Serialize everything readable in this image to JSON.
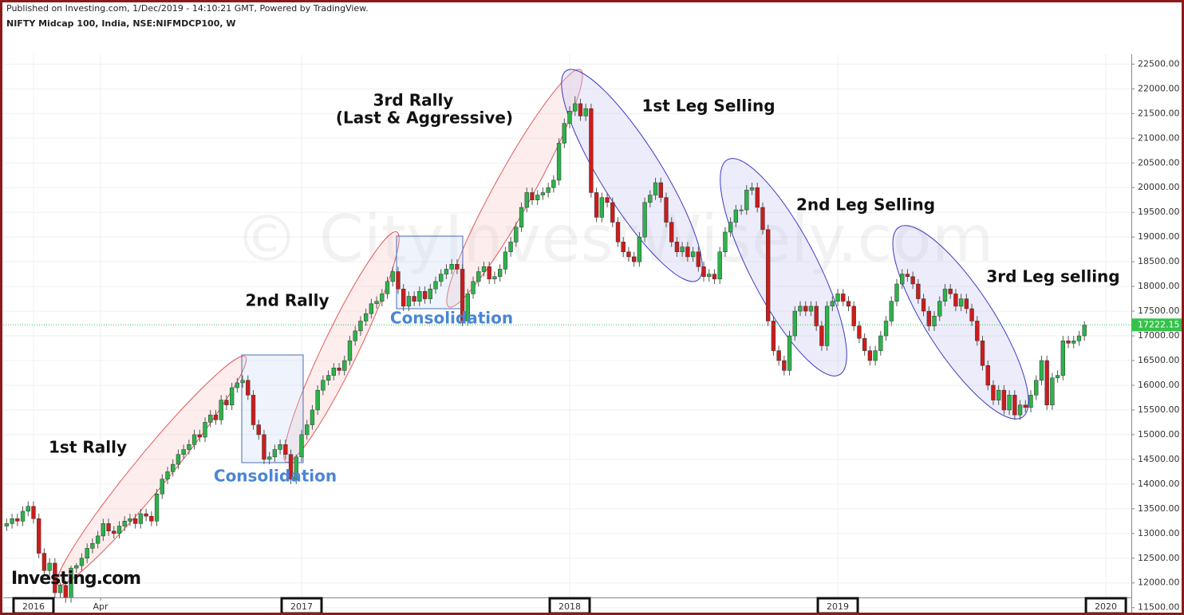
{
  "chart_data": {
    "type": "candlestick",
    "title": "NIFTY Midcap 100, India, NSE:NIFMDCP100, W",
    "subtitle": "Published on Investing.com, 1/Dec/2019 - 14:10:21 GMT, Powered by TradingView.",
    "watermark": "© CityInvestWisely.com",
    "logo": "Investing.com",
    "annotations": [
      "1st Rally",
      "Consolidation",
      "2nd Rally",
      "Consolidation",
      "3rd Rally",
      "(Last & Aggressive)",
      "1st Leg Selling",
      "2nd Leg Selling",
      "3rd Leg selling"
    ],
    "up_color": "#2db24a",
    "down_color": "#cc1c1c",
    "last_line_color": "#35c24a",
    "grid": true,
    "xlim": [
      2015.887,
      2020.095
    ],
    "xticks": [
      {
        "value": 2016,
        "label": "2016"
      },
      {
        "value": 2016.25,
        "label": "Apr"
      },
      {
        "value": 2017,
        "label": "2017"
      },
      {
        "value": 2018,
        "label": "2018"
      },
      {
        "value": 2019,
        "label": "2019"
      },
      {
        "value": 2020,
        "label": "2020"
      }
    ],
    "ylim": [
      11350,
      22700
    ],
    "yticks": [
      {
        "value": 11500,
        "label": "11500.00"
      },
      {
        "value": 12000,
        "label": "12000.00"
      },
      {
        "value": 12500,
        "label": "12500.00"
      },
      {
        "value": 13000,
        "label": "13000.00"
      },
      {
        "value": 13500,
        "label": "13500.00"
      },
      {
        "value": 14000,
        "label": "14000.00"
      },
      {
        "value": 14500,
        "label": "14500.00"
      },
      {
        "value": 15000,
        "label": "15000.00"
      },
      {
        "value": 15500,
        "label": "15500.00"
      },
      {
        "value": 16000,
        "label": "16000.00"
      },
      {
        "value": 16500,
        "label": "16500.00"
      },
      {
        "value": 17000,
        "label": "17000.00"
      },
      {
        "value": 17500,
        "label": "17500.00"
      },
      {
        "value": 18000,
        "label": "18000.00"
      },
      {
        "value": 18500,
        "label": "18500.00"
      },
      {
        "value": 19000,
        "label": "19000.00"
      },
      {
        "value": 19500,
        "label": "19500.00"
      },
      {
        "value": 20000,
        "label": "20000.00"
      },
      {
        "value": 20500,
        "label": "20500.00"
      },
      {
        "value": 21000,
        "label": "21000.00"
      },
      {
        "value": 21500,
        "label": "21500.00"
      },
      {
        "value": 22000,
        "label": "22000.00"
      },
      {
        "value": 22500,
        "label": "22500.00"
      }
    ],
    "x": [
      2015.9,
      2015.92,
      2015.94,
      2015.96,
      2015.98,
      2016.0,
      2016.02,
      2016.04,
      2016.06,
      2016.08,
      2016.1,
      2016.12,
      2016.14,
      2016.16,
      2016.18,
      2016.2,
      2016.22,
      2016.24,
      2016.26,
      2016.28,
      2016.3,
      2016.32,
      2016.34,
      2016.36,
      2016.38,
      2016.4,
      2016.42,
      2016.44,
      2016.46,
      2016.48,
      2016.5,
      2016.52,
      2016.54,
      2016.56,
      2016.58,
      2016.6,
      2016.62,
      2016.64,
      2016.66,
      2016.68,
      2016.7,
      2016.72,
      2016.74,
      2016.76,
      2016.78,
      2016.8,
      2016.82,
      2016.84,
      2016.86,
      2016.88,
      2016.9,
      2016.92,
      2016.94,
      2016.96,
      2016.98,
      2017.0,
      2017.02,
      2017.04,
      2017.06,
      2017.08,
      2017.1,
      2017.12,
      2017.14,
      2017.16,
      2017.18,
      2017.2,
      2017.22,
      2017.24,
      2017.26,
      2017.28,
      2017.3,
      2017.32,
      2017.34,
      2017.36,
      2017.38,
      2017.4,
      2017.42,
      2017.44,
      2017.46,
      2017.48,
      2017.5,
      2017.52,
      2017.54,
      2017.56,
      2017.58,
      2017.6,
      2017.62,
      2017.64,
      2017.66,
      2017.68,
      2017.7,
      2017.72,
      2017.74,
      2017.76,
      2017.78,
      2017.8,
      2017.82,
      2017.84,
      2017.86,
      2017.88,
      2017.9,
      2017.92,
      2017.94,
      2017.96,
      2017.98,
      2018.0,
      2018.02,
      2018.04,
      2018.06,
      2018.08,
      2018.1,
      2018.12,
      2018.14,
      2018.16,
      2018.18,
      2018.2,
      2018.22,
      2018.24,
      2018.26,
      2018.28,
      2018.3,
      2018.32,
      2018.34,
      2018.36,
      2018.38,
      2018.4,
      2018.42,
      2018.44,
      2018.46,
      2018.48,
      2018.5,
      2018.52,
      2018.54,
      2018.56,
      2018.58,
      2018.6,
      2018.62,
      2018.64,
      2018.66,
      2018.68,
      2018.7,
      2018.72,
      2018.74,
      2018.76,
      2018.78,
      2018.8,
      2018.82,
      2018.84,
      2018.86,
      2018.88,
      2018.9,
      2018.92,
      2018.94,
      2018.96,
      2018.98,
      2019.0,
      2019.02,
      2019.04,
      2019.06,
      2019.08,
      2019.1,
      2019.12,
      2019.14,
      2019.16,
      2019.18,
      2019.2,
      2019.22,
      2019.24,
      2019.26,
      2019.28,
      2019.3,
      2019.32,
      2019.34,
      2019.36,
      2019.38,
      2019.4,
      2019.42,
      2019.44,
      2019.46,
      2019.48,
      2019.5,
      2019.52,
      2019.54,
      2019.56,
      2019.58,
      2019.6,
      2019.62,
      2019.64,
      2019.66,
      2019.68,
      2019.7,
      2019.72,
      2019.74,
      2019.76,
      2019.78,
      2019.8,
      2019.82,
      2019.84,
      2019.86,
      2019.88,
      2019.9,
      2019.92
    ],
    "open": [
      13150,
      13200,
      13300,
      13250,
      13450,
      13550,
      13300,
      12600,
      12250,
      12400,
      11800,
      11950,
      11700,
      12300,
      12350,
      12500,
      12700,
      12800,
      12950,
      13200,
      13050,
      13000,
      13150,
      13250,
      13300,
      13200,
      13400,
      13350,
      13250,
      13800,
      14100,
      14250,
      14400,
      14600,
      14700,
      14800,
      15000,
      14950,
      15250,
      15400,
      15300,
      15700,
      15600,
      15950,
      16050,
      16100,
      15800,
      15200,
      15000,
      14500,
      14550,
      14700,
      14800,
      14600,
      14100,
      14550,
      15000,
      15200,
      15500,
      15900,
      16100,
      16200,
      16350,
      16300,
      16500,
      16900,
      17100,
      17300,
      17450,
      17650,
      17700,
      17850,
      18100,
      18300,
      17950,
      17600,
      17800,
      17700,
      17900,
      17750,
      17950,
      18100,
      18250,
      18350,
      18450,
      18350,
      17300,
      17850,
      18100,
      18300,
      18400,
      18150,
      18200,
      18350,
      18700,
      18900,
      19200,
      19600,
      19900,
      19750,
      19850,
      19900,
      20000,
      20150,
      20900,
      21300,
      21550,
      21700,
      21450,
      21600,
      19900,
      19400,
      19800,
      19700,
      19300,
      18900,
      18700,
      18600,
      18500,
      19000,
      19700,
      19850,
      20100,
      19800,
      19300,
      18900,
      18700,
      18800,
      18600,
      18700,
      18400,
      18200,
      18250,
      18150,
      18700,
      19100,
      19300,
      19550,
      19550,
      19950,
      20000,
      19600,
      19150,
      17300,
      16700,
      16500,
      16300,
      17000,
      17500,
      17600,
      17500,
      17600,
      17200,
      16800,
      17600,
      17700,
      17850,
      17700,
      17600,
      17200,
      16950,
      16700,
      16500,
      16700,
      17000,
      17300,
      17700,
      18050,
      18250,
      18200,
      18050,
      17750,
      17500,
      17200,
      17400,
      17700,
      17950,
      17850,
      17600,
      17750,
      17550,
      17300,
      16900,
      16400,
      16000,
      15700,
      15900,
      15500,
      15800,
      15400,
      15600,
      15550,
      15800,
      16100,
      16500,
      15600,
      16150,
      16200,
      16900,
      16850,
      16900,
      17000
    ],
    "high": [
      13300,
      13400,
      13400,
      13550,
      13650,
      13650,
      13400,
      12700,
      12500,
      12500,
      12000,
      12050,
      12350,
      12400,
      12600,
      12800,
      12900,
      13050,
      13300,
      13300,
      13150,
      13250,
      13350,
      13400,
      13400,
      13500,
      13500,
      13450,
      13900,
      14200,
      14350,
      14500,
      14700,
      14800,
      14900,
      15100,
      15100,
      15350,
      15500,
      15500,
      15800,
      15800,
      16050,
      16150,
      16200,
      16200,
      15900,
      15300,
      15100,
      14650,
      14800,
      14900,
      14900,
      14700,
      14600,
      15100,
      15300,
      15600,
      16000,
      16200,
      16300,
      16450,
      16450,
      16600,
      17000,
      17200,
      17400,
      17550,
      17750,
      17800,
      17950,
      18200,
      18400,
      18400,
      18050,
      17900,
      17900,
      18000,
      18000,
      18050,
      18200,
      18350,
      18450,
      18550,
      18550,
      18450,
      17950,
      18200,
      18400,
      18500,
      18500,
      18300,
      18450,
      18800,
      19000,
      19300,
      19700,
      20000,
      20000,
      19950,
      20000,
      20100,
      20250,
      21000,
      21400,
      21650,
      21850,
      21800,
      21700,
      21700,
      20000,
      19900,
      19900,
      19800,
      19400,
      19000,
      18800,
      18700,
      19100,
      19800,
      19950,
      20200,
      20200,
      19900,
      19400,
      19000,
      18900,
      18900,
      18800,
      18800,
      18500,
      18350,
      18350,
      18800,
      19200,
      19400,
      19650,
      19650,
      20050,
      20100,
      20100,
      19700,
      19250,
      17400,
      16800,
      16600,
      17100,
      17600,
      17700,
      17700,
      17700,
      17700,
      17300,
      17700,
      17800,
      17950,
      17950,
      17800,
      17700,
      17300,
      17050,
      16800,
      16800,
      17100,
      17400,
      17800,
      18150,
      18350,
      18350,
      18300,
      18150,
      17850,
      17600,
      17500,
      17800,
      18050,
      18050,
      17950,
      17850,
      17850,
      17650,
      17400,
      17000,
      16500,
      16100,
      16000,
      16000,
      15900,
      15900,
      15700,
      15700,
      15900,
      16200,
      16600,
      16600,
      16250,
      16300,
      17000,
      17000,
      17000,
      17100,
      17300
    ],
    "low": [
      13050,
      13100,
      13150,
      13150,
      13350,
      13200,
      12500,
      12150,
      12150,
      11700,
      11700,
      11600,
      11600,
      12200,
      12250,
      12400,
      12600,
      12700,
      12850,
      12950,
      12900,
      12900,
      13050,
      13150,
      13100,
      13100,
      13250,
      13150,
      13150,
      13700,
      14000,
      14150,
      14300,
      14500,
      14600,
      14700,
      14850,
      14850,
      15150,
      15200,
      15200,
      15500,
      15500,
      15850,
      15950,
      15700,
      15100,
      14900,
      14400,
      14400,
      14450,
      14600,
      14500,
      14000,
      14000,
      14450,
      14900,
      15100,
      15400,
      15800,
      16000,
      16100,
      16200,
      16200,
      16400,
      16800,
      17000,
      17200,
      17350,
      17550,
      17600,
      17750,
      18000,
      17850,
      17500,
      17500,
      17600,
      17600,
      17650,
      17650,
      17850,
      18000,
      18150,
      18250,
      18250,
      17200,
      17200,
      17750,
      18000,
      18200,
      18050,
      18050,
      18100,
      18250,
      18600,
      18800,
      19100,
      19500,
      19650,
      19650,
      19750,
      19800,
      19900,
      20050,
      20800,
      21200,
      21450,
      21350,
      21350,
      19800,
      19300,
      19300,
      19600,
      19200,
      18800,
      18600,
      18500,
      18400,
      18400,
      18900,
      19600,
      19750,
      19700,
      19200,
      18800,
      18600,
      18600,
      18500,
      18500,
      18300,
      18100,
      18100,
      18050,
      18050,
      18600,
      19000,
      19200,
      19450,
      19450,
      19850,
      19500,
      19050,
      17200,
      16600,
      16400,
      16200,
      16200,
      16900,
      17400,
      17400,
      17400,
      17100,
      16700,
      16700,
      17500,
      17600,
      17600,
      17500,
      17100,
      16850,
      16600,
      16400,
      16400,
      16600,
      16900,
      17200,
      17600,
      17950,
      18100,
      17950,
      17650,
      17400,
      17100,
      17100,
      17300,
      17600,
      17750,
      17500,
      17500,
      17450,
      17200,
      16800,
      16300,
      15900,
      15600,
      15600,
      15400,
      15400,
      15300,
      15300,
      15450,
      15450,
      15700,
      16000,
      15500,
      15500,
      16050,
      16100,
      16750,
      16750,
      16800,
      16900
    ],
    "close": [
      13200,
      13300,
      13250,
      13450,
      13550,
      13300,
      12600,
      12250,
      12400,
      11800,
      11950,
      11700,
      12300,
      12350,
      12500,
      12700,
      12800,
      12950,
      13200,
      13050,
      13000,
      13150,
      13250,
      13300,
      13200,
      13400,
      13350,
      13250,
      13800,
      14100,
      14250,
      14400,
      14600,
      14700,
      14800,
      15000,
      14950,
      15250,
      15400,
      15300,
      15700,
      15600,
      15950,
      16050,
      16100,
      15800,
      15200,
      15000,
      14500,
      14550,
      14700,
      14800,
      14600,
      14100,
      14550,
      15000,
      15200,
      15500,
      15900,
      16100,
      16200,
      16350,
      16300,
      16500,
      16900,
      17100,
      17300,
      17450,
      17650,
      17700,
      17850,
      18100,
      18300,
      17950,
      17600,
      17800,
      17700,
      17900,
      17750,
      17950,
      18100,
      18250,
      18350,
      18450,
      18350,
      17300,
      17850,
      18100,
      18300,
      18400,
      18150,
      18200,
      18350,
      18700,
      18900,
      19200,
      19600,
      19900,
      19750,
      19850,
      19900,
      20000,
      20150,
      20900,
      21300,
      21550,
      21700,
      21450,
      21600,
      19900,
      19400,
      19800,
      19700,
      19300,
      18900,
      18700,
      18600,
      18500,
      19000,
      19700,
      19850,
      20100,
      19800,
      19300,
      18900,
      18700,
      18800,
      18600,
      18700,
      18400,
      18200,
      18250,
      18150,
      18700,
      19100,
      19300,
      19550,
      19550,
      19950,
      20000,
      19600,
      19150,
      17300,
      16700,
      16500,
      16300,
      17000,
      17500,
      17600,
      17500,
      17600,
      17200,
      16800,
      17600,
      17700,
      17850,
      17700,
      17600,
      17200,
      16950,
      16700,
      16500,
      16700,
      17000,
      17300,
      17700,
      18050,
      18250,
      18200,
      18050,
      17750,
      17500,
      17200,
      17400,
      17700,
      17950,
      17850,
      17600,
      17750,
      17550,
      17300,
      16900,
      16400,
      16000,
      15700,
      15900,
      15500,
      15800,
      15400,
      15600,
      15550,
      15800,
      16100,
      16500,
      15600,
      16150,
      16200,
      16900,
      16850,
      16900,
      17000,
      17222.15
    ]
  }
}
